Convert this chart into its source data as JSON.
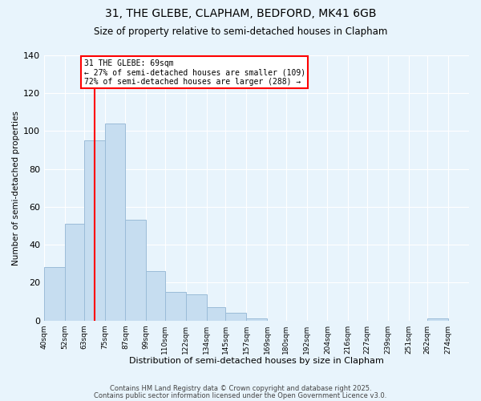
{
  "title1": "31, THE GLEBE, CLAPHAM, BEDFORD, MK41 6GB",
  "title2": "Size of property relative to semi-detached houses in Clapham",
  "xlabel": "Distribution of semi-detached houses by size in Clapham",
  "ylabel": "Number of semi-detached properties",
  "bin_labels": [
    "40sqm",
    "52sqm",
    "63sqm",
    "75sqm",
    "87sqm",
    "99sqm",
    "110sqm",
    "122sqm",
    "134sqm",
    "145sqm",
    "157sqm",
    "169sqm",
    "180sqm",
    "192sqm",
    "204sqm",
    "216sqm",
    "227sqm",
    "239sqm",
    "251sqm",
    "262sqm",
    "274sqm"
  ],
  "bin_edges": [
    40,
    52,
    63,
    75,
    87,
    99,
    110,
    122,
    134,
    145,
    157,
    169,
    180,
    192,
    204,
    216,
    227,
    239,
    251,
    262,
    274,
    286
  ],
  "counts": [
    28,
    51,
    95,
    104,
    53,
    26,
    15,
    14,
    7,
    4,
    1,
    0,
    0,
    0,
    0,
    0,
    0,
    0,
    0,
    1,
    0
  ],
  "bar_color": "#c6ddf0",
  "bar_edge_color": "#9bbcd8",
  "vline_x": 69,
  "vline_color": "red",
  "annotation_text": "31 THE GLEBE: 69sqm\n← 27% of semi-detached houses are smaller (109)\n72% of semi-detached houses are larger (288) →",
  "annotation_box_color": "white",
  "annotation_box_edge": "red",
  "ylim": [
    0,
    140
  ],
  "yticks": [
    0,
    20,
    40,
    60,
    80,
    100,
    120,
    140
  ],
  "footer1": "Contains HM Land Registry data © Crown copyright and database right 2025.",
  "footer2": "Contains public sector information licensed under the Open Government Licence v3.0.",
  "bg_color": "#e8f4fc"
}
